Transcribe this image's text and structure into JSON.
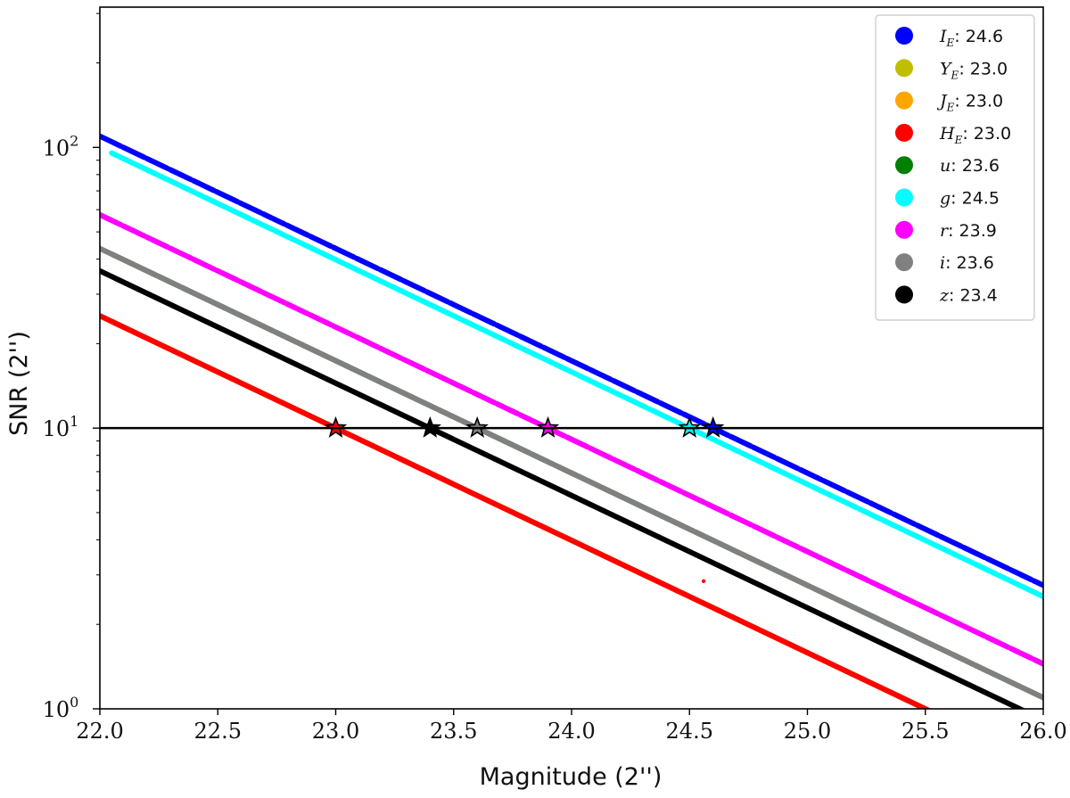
{
  "chart_data": {
    "type": "line",
    "xlabel": "Magnitude (2'')",
    "ylabel": "SNR (2'')",
    "xlim": [
      22.0,
      26.0
    ],
    "ylim": [
      1,
      316
    ],
    "yscale": "log",
    "x_ticks": [
      "22.0",
      "22.5",
      "23.0",
      "23.5",
      "24.0",
      "24.5",
      "25.0",
      "25.5",
      "26.0"
    ],
    "y_ticks": [
      {
        "value": 1,
        "base": "10",
        "exp": "0"
      },
      {
        "value": 10,
        "base": "10",
        "exp": "1"
      },
      {
        "value": 100,
        "base": "10",
        "exp": "2"
      }
    ],
    "threshold_snr": 10,
    "legend_position": "upper right",
    "grid": false,
    "series": [
      {
        "name": "I",
        "sub": "E",
        "limit": "24.6",
        "color": "#0000ff",
        "x_start": 22.0,
        "x_end": 26.0,
        "gaps": true
      },
      {
        "name": "Y",
        "sub": "E",
        "limit": "23.0",
        "color": "#bfbf00",
        "x_start": 22.0,
        "x_end": 25.55,
        "gaps": false
      },
      {
        "name": "J",
        "sub": "E",
        "limit": "23.0",
        "color": "#ffa500",
        "x_start": 22.0,
        "x_end": 25.55,
        "gaps": false
      },
      {
        "name": "H",
        "sub": "E",
        "limit": "23.0",
        "color": "#ff0000",
        "x_start": 22.0,
        "x_end": 25.55,
        "gaps": false
      },
      {
        "name": "u",
        "sub": "",
        "limit": "23.6",
        "color": "#008000",
        "x_start": 22.05,
        "x_end": 26.0,
        "gaps": true
      },
      {
        "name": "g",
        "sub": "",
        "limit": "24.5",
        "color": "#00ffff",
        "x_start": 22.05,
        "x_end": 26.0,
        "gaps": true
      },
      {
        "name": "r",
        "sub": "",
        "limit": "23.9",
        "color": "#ff00ff",
        "x_start": 22.0,
        "x_end": 26.0,
        "gaps": true
      },
      {
        "name": "i",
        "sub": "",
        "limit": "23.6",
        "color": "#808080",
        "x_start": 22.0,
        "x_end": 26.0,
        "gaps": false
      },
      {
        "name": "z",
        "sub": "",
        "limit": "23.4",
        "color": "#000000",
        "x_start": 22.0,
        "x_end": 25.95,
        "gaps": false
      }
    ],
    "markers": [
      {
        "series": "H",
        "x": 23.0,
        "y": 10,
        "color": "#ff0000"
      },
      {
        "series": "z",
        "x": 23.4,
        "y": 10,
        "color": "#000000"
      },
      {
        "series": "i",
        "x": 23.6,
        "y": 10,
        "color": "#808080"
      },
      {
        "series": "r",
        "x": 23.9,
        "y": 10,
        "color": "#ff00ff"
      },
      {
        "series": "g",
        "x": 24.5,
        "y": 10,
        "color": "#00ffff"
      },
      {
        "series": "I",
        "x": 24.6,
        "y": 10,
        "color": "#0000ff"
      }
    ],
    "outliers": [
      {
        "series": "H",
        "x": 24.56,
        "y": 2.85,
        "color": "#ff0000"
      }
    ]
  }
}
